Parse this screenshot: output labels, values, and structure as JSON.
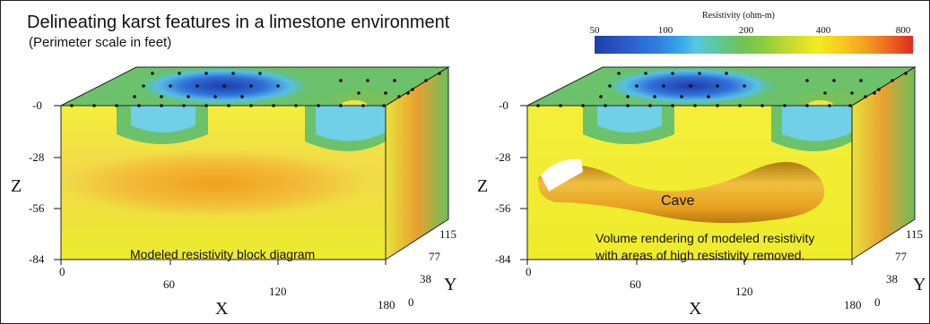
{
  "title": "Delineating karst features in a limestone environment",
  "subtitle": "(Perimeter scale in feet)",
  "colorbar": {
    "title": "Resistivity (ohm-m)",
    "ticks": [
      "50",
      "100",
      "200",
      "400",
      "800"
    ]
  },
  "axes": {
    "z_label": "Z",
    "x_label": "X",
    "y_label": "Y",
    "z_ticks": [
      "-0",
      "-28",
      "-56",
      "-84"
    ],
    "x_ticks": [
      "0",
      "60",
      "120",
      "180"
    ],
    "y_ticks": [
      "0",
      "38",
      "77",
      "115"
    ]
  },
  "left_panel": {
    "caption": "Modeled resistivity block diagram"
  },
  "right_panel": {
    "caption_line1": "Volume rendering of modeled resistivity",
    "caption_line2": "with areas of high resistivity removed.",
    "cave_label": "Cave"
  }
}
